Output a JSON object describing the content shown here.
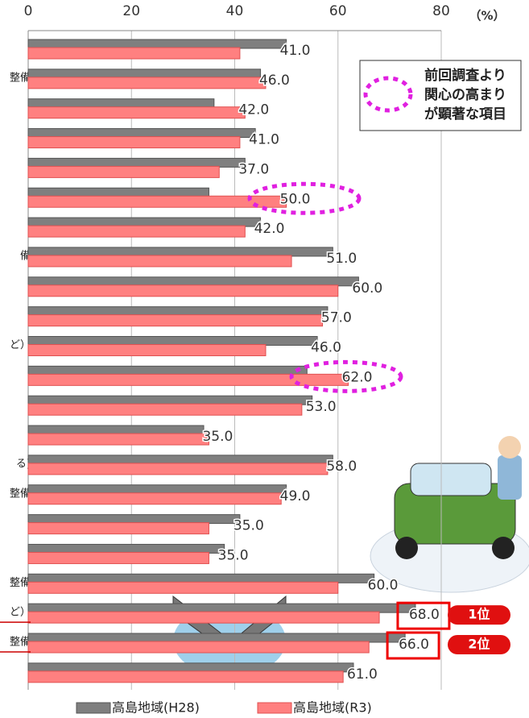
{
  "chart_data": {
    "type": "hbar",
    "unit_label": "（%）",
    "categories": [
      null,
      "整備",
      null,
      null,
      null,
      null,
      null,
      "備",
      null,
      null,
      "ど）",
      null,
      null,
      null,
      "る)",
      "整備",
      null,
      null,
      "整備",
      "ど）",
      "整備",
      null
    ],
    "series": [
      {
        "name": "高島地域(H28)",
        "color": "#7f7f7f",
        "values": [
          50,
          45,
          36,
          44,
          42,
          35,
          45,
          59,
          64,
          58,
          56,
          54,
          55,
          34,
          59,
          50,
          41,
          38,
          67,
          75,
          73,
          63
        ]
      },
      {
        "name": "高島地域(R3)",
        "color": "#ff8080",
        "values": [
          41,
          46,
          42,
          41,
          37,
          50,
          42,
          51,
          60,
          57,
          46,
          62,
          53,
          35,
          58,
          49,
          35,
          35,
          60,
          68,
          66,
          61
        ],
        "value_labels": [
          "41.0",
          "46.0",
          "42.0",
          "41.0",
          "37.0",
          "50.0",
          "42.0",
          "51.0",
          "60.0",
          "57.0",
          "46.0",
          "62.0",
          "53.0",
          "35.0",
          "58.0",
          "49.0",
          "35.0",
          "35.0",
          "60.0",
          "68.0",
          "66.0",
          "61.0"
        ]
      }
    ],
    "xlim": [
      0,
      80
    ],
    "xticks": [
      0,
      20,
      40,
      60,
      80
    ],
    "grid": true,
    "annotation": "前回調査より\n関心の高まり\nが顕著な項目",
    "rank_labels": [
      "1位",
      "2位"
    ]
  }
}
